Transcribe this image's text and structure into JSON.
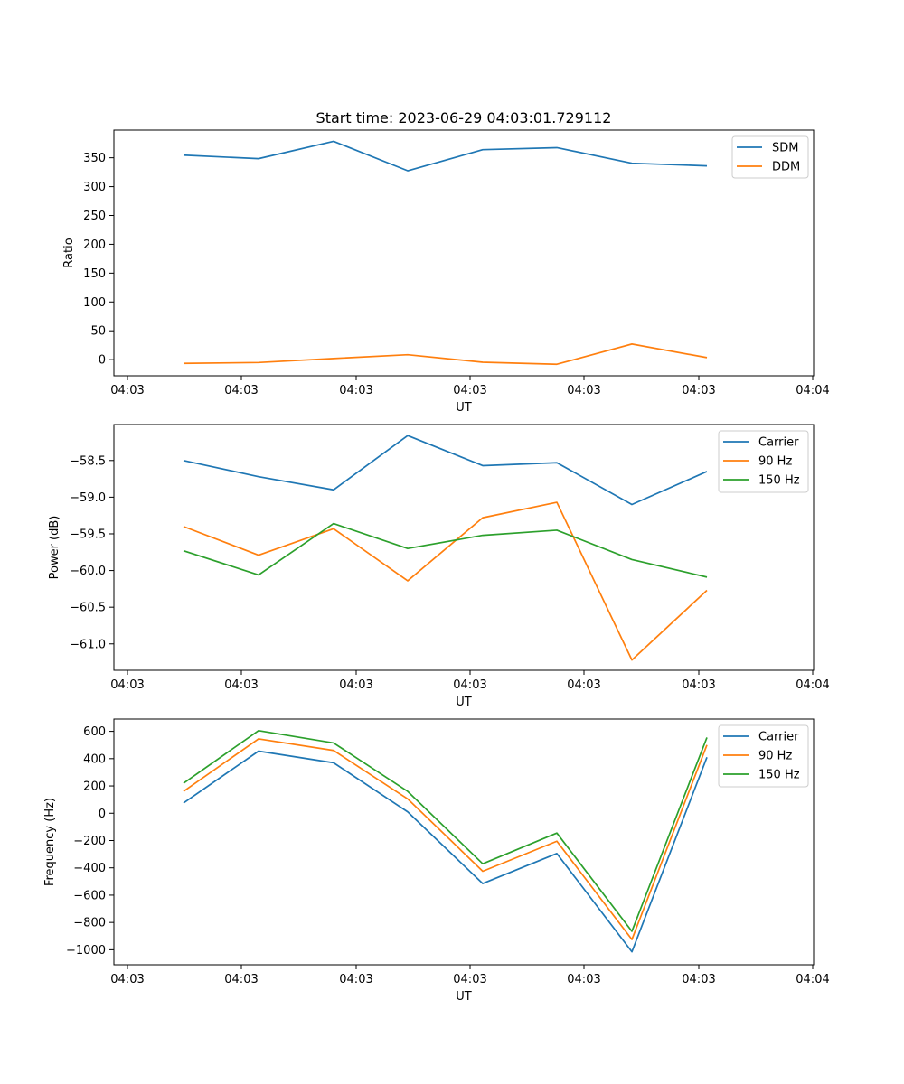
{
  "figure": {
    "title": "Start time: 2023-06-29 04:03:01.729112"
  },
  "colors": {
    "series1": "#1f77b4",
    "series2": "#ff7f0e",
    "series3": "#2ca02c"
  },
  "chart_data": [
    {
      "type": "line",
      "xlabel": "UT",
      "ylabel": "Ratio",
      "xticks": [
        "04:03",
        "04:03",
        "04:03",
        "04:03",
        "04:03",
        "04:03",
        "04:03"
      ],
      "xticks_last": "04:04",
      "yticks": [
        0,
        50,
        100,
        150,
        200,
        250,
        300,
        350
      ],
      "ylim": [
        -28,
        398
      ],
      "legend_position": "upper right",
      "series": [
        {
          "name": "SDM",
          "color": "#1f77b4",
          "values": [
            354.5,
            348.5,
            378.5,
            327.5,
            364,
            367.5,
            340.5,
            336
          ]
        },
        {
          "name": "DDM",
          "color": "#ff7f0e",
          "values": [
            -6.5,
            -5,
            2,
            8.5,
            -4.5,
            -8,
            27,
            3.5
          ]
        }
      ]
    },
    {
      "type": "line",
      "xlabel": "UT",
      "ylabel": "Power (dB)",
      "xticks": [
        "04:03",
        "04:03",
        "04:03",
        "04:03",
        "04:03",
        "04:03",
        "04:03"
      ],
      "xticks_last": "04:04",
      "yticks": [
        "−58.5",
        "−59.0",
        "−59.5",
        "−60.0",
        "−60.5",
        "−61.0"
      ],
      "ytick_values": [
        -58.5,
        -59.0,
        -59.5,
        -60.0,
        -60.5,
        -61.0
      ],
      "ylim": [
        -61.36,
        -58.01
      ],
      "legend_position": "upper right",
      "series": [
        {
          "name": "Carrier",
          "color": "#1f77b4",
          "values": [
            -58.5,
            -58.72,
            -58.9,
            -58.16,
            -58.57,
            -58.53,
            -59.1,
            -58.65
          ]
        },
        {
          "name": "90 Hz",
          "color": "#ff7f0e",
          "values": [
            -59.4,
            -59.79,
            -59.43,
            -60.14,
            -59.28,
            -59.07,
            -61.22,
            -60.27
          ]
        },
        {
          "name": "150 Hz",
          "color": "#2ca02c",
          "values": [
            -59.73,
            -60.06,
            -59.36,
            -59.7,
            -59.52,
            -59.45,
            -59.85,
            -60.09
          ]
        }
      ]
    },
    {
      "type": "line",
      "xlabel": "UT",
      "ylabel": "Frequency (Hz)",
      "xticks": [
        "04:03",
        "04:03",
        "04:03",
        "04:03",
        "04:03",
        "04:03",
        "04:03"
      ],
      "xticks_last": "04:04",
      "yticks": [
        "600",
        "400",
        "200",
        "0",
        "−200",
        "−400",
        "−600",
        "−800",
        "−1000"
      ],
      "ytick_values": [
        600,
        400,
        200,
        0,
        -200,
        -400,
        -600,
        -800,
        -1000
      ],
      "ylim": [
        -1110,
        690
      ],
      "legend_position": "upper right",
      "series": [
        {
          "name": "Carrier",
          "color": "#1f77b4",
          "values": [
            75,
            455,
            370,
            10,
            -515,
            -295,
            -1015,
            410
          ]
        },
        {
          "name": "90 Hz",
          "color": "#ff7f0e",
          "values": [
            160,
            545,
            460,
            105,
            -425,
            -205,
            -925,
            500
          ]
        },
        {
          "name": "150 Hz",
          "color": "#2ca02c",
          "values": [
            220,
            605,
            515,
            160,
            -370,
            -145,
            -865,
            555
          ]
        }
      ]
    }
  ]
}
